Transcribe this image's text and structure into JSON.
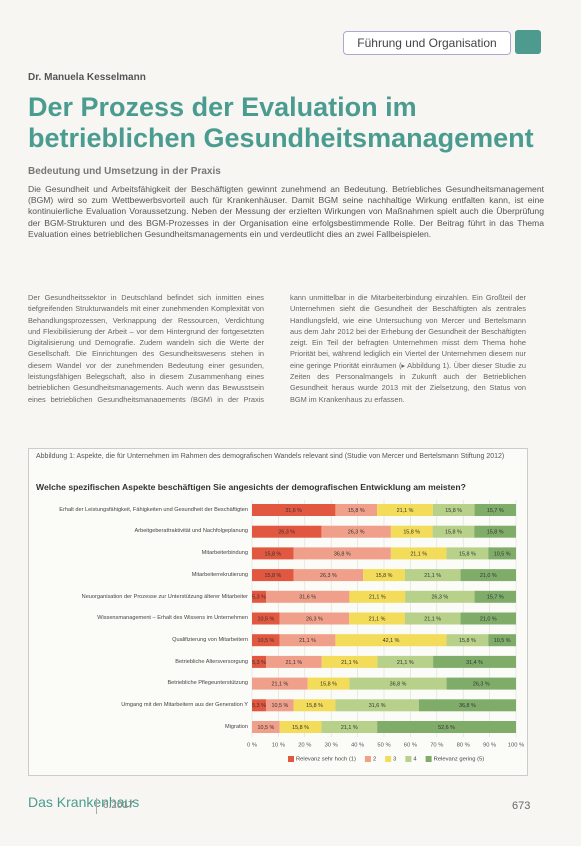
{
  "header": {
    "section": "Führung und Organisation"
  },
  "author": "Dr. Manuela Kesselmann",
  "title": "Der Prozess der Evaluation im betrieblichen Gesundheitsmanagement",
  "subtitle": "Bedeutung und Umsetzung in der Praxis",
  "intro": "Die Gesundheit und Arbeitsfähigkeit der Beschäftigten gewinnt zunehmend an Bedeutung. Betriebliches Gesundheitsmanagement (BGM) wird so zum Wettbewerbsvorteil auch für Krankenhäuser. Damit BGM seine nachhaltige Wirkung entfalten kann, ist eine kontinuierliche Evaluation Voraussetzung. Neben der Messung der erzielten Wirkungen von Maßnahmen spielt auch die Überprüfung der BGM-Strukturen und des BGM-Prozesses in der Organisation eine erfolgsbestimmende Rolle. Der Beitrag führt in das Thema Evaluation eines betrieblichen Gesundheitsmanagements ein und verdeutlicht dies an zwei Fallbeispielen.",
  "columns": [
    "Der Gesundheitssektor in Deutschland befindet sich inmitten eines tiefgreifenden Strukturwandels mit einer zunehmenden Komplexität von Behandlungsprozessen, Verknappung der Ressourcen, Verdichtung und Flexibilisierung der Arbeit – vor dem Hintergrund der fortgesetzten Digitalisierung und Demografie. Zudem wandeln sich die Werte der Gesellschaft. Die Einrichtungen des Gesundheitswesens stehen in diesem Wandel vor der zunehmenden Bedeutung einer gesunden, leistungsfähigen Belegschaft, also in diesem Zusammenhang eines betrieblichen Gesundheitsmanagements. Auch wenn das Bewusstsein eines betrieblichen Gesundheitsmanagements (BGM) in der Praxis steigt,",
    "kann unmittelbar in die Mitarbeiterbindung einzahlen. Ein Großteil der Unternehmen sieht die Gesundheit der Beschäftigten als zentrales Handlungsfeld, wie eine Untersuchung von Mercer und Bertelsmann aus dem Jahr 2012 bei der Erhebung der Gesundheit der Beschäftigten zeigt. Ein Teil der befragten Unternehmen misst dem Thema hohe Priorität bei, während lediglich ein Viertel der Unternehmen diesem nur eine geringe Priorität einräumen (▸ Abbildung 1). Über dieser Studie zu Zeiten des Personalmangels in Zukunft auch der Betrieblichen Gesundheit heraus wurde 2013 mit der Zielsetzung, den Status von BGM im Krankenhaus zu erfassen."
  ],
  "figure_caption": "Abbildung 1: Aspekte, die für Unternehmen im Rahmen des demografischen Wandels relevant sind (Studie von Mercer und Bertelsmann Stiftung 2012)",
  "chart_data": {
    "type": "stacked-bar-horizontal",
    "title": "Welche spezifischen Aspekte beschäftigen Sie angesichts der demografischen Entwicklung am meisten?",
    "categories": [
      "Erhalt der Leistungsfähigkeit, Fähigkeiten und Gesundheit der Beschäftigten",
      "Arbeitgeberattraktivität und Nachfolgeplanung",
      "Mitarbeiterbindung",
      "Mitarbeiterrekrutierung",
      "Neuorganisation der Prozesse zur Unterstützung älterer Mitarbeiter",
      "Wissensmanagement – Erhalt des Wissens im Unternehmen",
      "Qualifizierung von Mitarbeitern",
      "Betriebliche Altersversorgung",
      "Betriebliche Pflegeunterstützung",
      "Umgang mit den Mitarbeitern aus der Generation Y",
      "Migration"
    ],
    "series": [
      {
        "name": "Relevanz sehr hoch (1)",
        "color": "#e2573f",
        "values": [
          31.6,
          26.3,
          15.8,
          15.8,
          5.3,
          10.5,
          10.5,
          5.3,
          0,
          5.3,
          0
        ],
        "value_labels": [
          "31,6 %",
          "26,3 %",
          "15,8 %",
          "15,8 %",
          "5,3 %",
          "10,5 %",
          "10,5 %",
          "5,3 %",
          null,
          "5,3 %",
          null
        ]
      },
      {
        "name": "2",
        "color": "#f0a08a",
        "values": [
          15.8,
          26.3,
          36.8,
          26.3,
          31.6,
          26.3,
          21.1,
          21.1,
          21.1,
          10.5,
          10.5
        ],
        "value_labels": [
          "15,8 %",
          "26,3 %",
          "36,8 %",
          "26,3 %",
          "31,6 %",
          "26,3 %",
          "21,1 %",
          "21,1 %",
          "21,1 %",
          "10,5 %",
          "10,5 %"
        ]
      },
      {
        "name": "3",
        "color": "#f2dc5a",
        "values": [
          21.1,
          15.8,
          21.1,
          15.8,
          21.1,
          21.1,
          42.1,
          21.1,
          15.8,
          15.8,
          15.8
        ],
        "value_labels": [
          "21,1 %",
          "15,8 %",
          "21,1 %",
          "15,8 %",
          "21,1 %",
          "21,1 %",
          "42,1 %",
          "21,1 %",
          "15,8 %",
          "15,8 %",
          "15,8 %"
        ]
      },
      {
        "name": "4",
        "color": "#b7d08a",
        "values": [
          15.8,
          15.8,
          15.8,
          21.1,
          26.3,
          21.1,
          15.8,
          21.1,
          36.8,
          31.6,
          21.1
        ],
        "value_labels": [
          "15,8 %",
          "15,8 %",
          "15,8 %",
          "21,1 %",
          "26,3 %",
          "21,1 %",
          "15,8 %",
          "21,1 %",
          "36,8 %",
          "31,6 %",
          "21,1 %"
        ]
      },
      {
        "name": "Relevanz gering (5)",
        "color": "#7fac68",
        "values": [
          15.7,
          15.8,
          10.5,
          21.0,
          15.7,
          21.0,
          10.5,
          31.4,
          26.3,
          36.8,
          52.6
        ],
        "value_labels": [
          "15,7 %",
          "15,8 %",
          "10,5 %",
          "21,0 %",
          "15,7 %",
          "21,0 %",
          "10,5 %",
          "31,4 %",
          "26,3 %",
          "36,8 %",
          "52,6 %"
        ]
      }
    ],
    "xlim": [
      0,
      100
    ],
    "xticks": [
      {
        "value": 0,
        "label": "0 %"
      },
      {
        "value": 10,
        "label": "10 %"
      },
      {
        "value": 20,
        "label": "20 %"
      },
      {
        "value": 30,
        "label": "30 %"
      },
      {
        "value": 40,
        "label": "40 %"
      },
      {
        "value": 50,
        "label": "50 %"
      },
      {
        "value": 60,
        "label": "60 %"
      },
      {
        "value": 70,
        "label": "70 %"
      },
      {
        "value": 80,
        "label": "80 %"
      },
      {
        "value": 90,
        "label": "90 %"
      },
      {
        "value": 100,
        "label": "100 %"
      }
    ],
    "legend": "bottom"
  },
  "footer": {
    "journal": "Das Krankenhaus",
    "issue": "6.2017",
    "page": "673"
  }
}
